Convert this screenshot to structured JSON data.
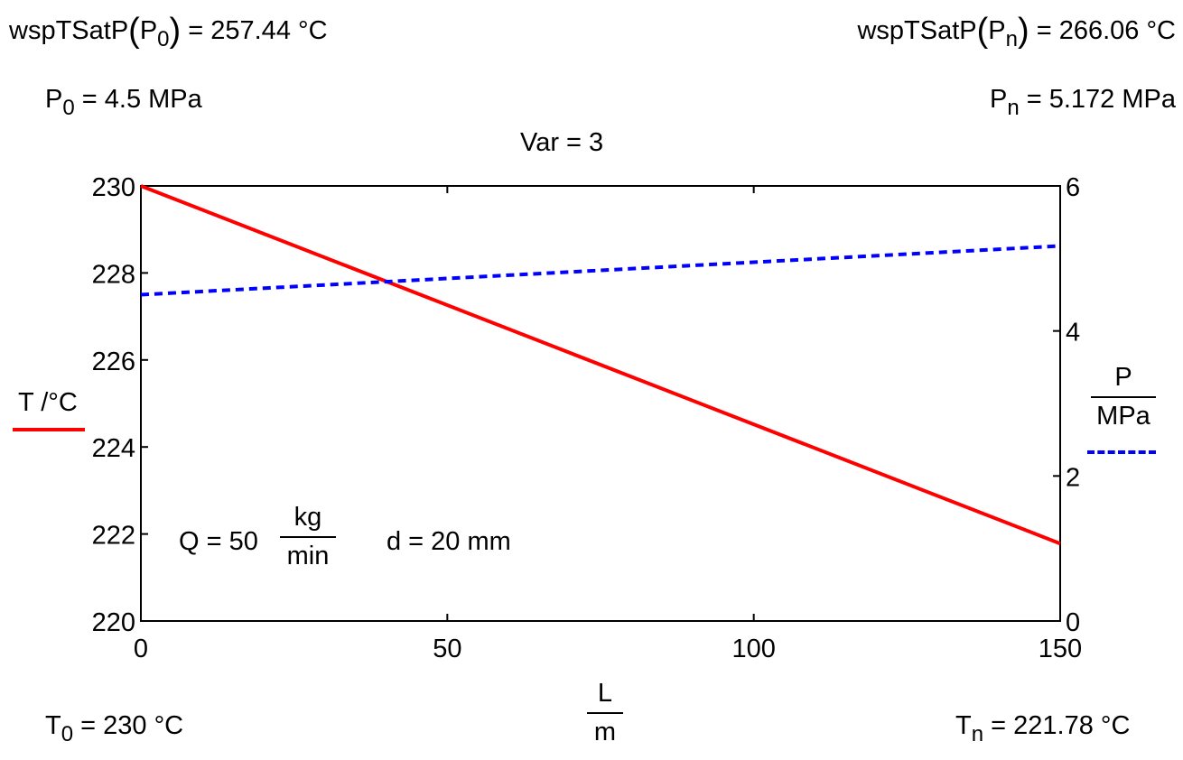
{
  "header": {
    "tsat_p0": {
      "func": "wspTSatP",
      "arg": "P",
      "arg_sub": "0",
      "value": "= 257.44 °C"
    },
    "tsat_pn": {
      "func": "wspTSatP",
      "arg": "P",
      "arg_sub": "n",
      "value": "= 266.06 °C"
    },
    "p0": {
      "sym": "P",
      "sub": "0",
      "value": "= 4.5 MPa"
    },
    "pn": {
      "sym": "P",
      "sub": "n",
      "value": "= 5.172 MPa"
    },
    "var": "Var = 3"
  },
  "footer": {
    "t0": {
      "sym": "T",
      "sub": "0",
      "value": "= 230 °C"
    },
    "tn": {
      "sym": "T",
      "sub": "n",
      "value": "= 221.78 °C"
    }
  },
  "annotations": {
    "q_prefix": "Q = 50",
    "q_unit_num": "kg",
    "q_unit_den": "min",
    "d": "d = 20 mm"
  },
  "colors": {
    "temperature": "#ff0000",
    "pressure": "#0000ff",
    "axis": "#000000"
  },
  "chart_data": {
    "type": "line",
    "title": "Var = 3",
    "xlabel": {
      "num": "L",
      "den": "m"
    },
    "ylabel_left": "T /°C",
    "ylabel_right": {
      "num": "P",
      "den": "MPa"
    },
    "xlim": [
      0,
      150
    ],
    "ylim_left": [
      220,
      230
    ],
    "ylim_right": [
      0,
      6
    ],
    "x_ticks": [
      "0",
      "50",
      "100",
      "150"
    ],
    "y_left_ticks": [
      "220",
      "222",
      "224",
      "226",
      "228",
      "230"
    ],
    "y_right_ticks": [
      "0",
      "2",
      "4",
      "6"
    ],
    "grid": false,
    "series": [
      {
        "axis": "left",
        "style": "solid",
        "color": "#ff0000",
        "x": [
          0,
          150
        ],
        "y": [
          230,
          221.78
        ]
      },
      {
        "axis": "right",
        "style": "dashed",
        "color": "#0000ff",
        "x": [
          0,
          150
        ],
        "y": [
          4.5,
          5.172
        ]
      }
    ]
  }
}
